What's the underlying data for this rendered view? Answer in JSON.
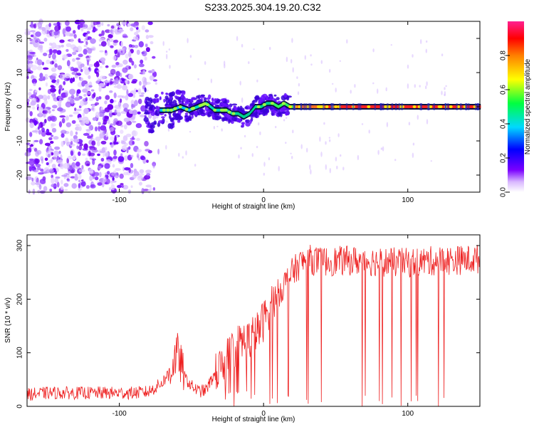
{
  "title": "S233.2025.304.19.20.C32",
  "chart_data": [
    {
      "type": "heatmap",
      "xlabel": "Height of straight line (km)",
      "ylabel": "Frequency (Hz)",
      "xlim": [
        -164,
        150
      ],
      "ylim": [
        -25,
        25
      ],
      "xticks": [
        -100,
        0,
        100
      ],
      "yticks": [
        -20,
        -10,
        0,
        10,
        20
      ],
      "tick_labels_x": [
        "-100",
        "0",
        "100"
      ],
      "tick_labels_y": [
        "-20",
        "-10",
        "0",
        "10",
        "20"
      ],
      "ridge_profile": {
        "x": [
          -80,
          -72,
          -64,
          -58,
          -52,
          -46,
          -40,
          -34,
          -30,
          -26,
          -22,
          -18,
          -14,
          -10,
          -6,
          -2,
          2,
          6,
          10,
          14,
          18,
          22,
          150
        ],
        "freq": [
          -3,
          -1,
          -1,
          0,
          -1,
          0,
          1,
          -1,
          -1,
          -1,
          -2,
          -2,
          -3,
          -2,
          0,
          0,
          1,
          1,
          0,
          1,
          0,
          0,
          0
        ]
      },
      "colorbar": {
        "label": "Normalized spectral amplitude",
        "range": [
          0,
          1
        ],
        "ticks": [
          0.0,
          0.2,
          0.4,
          0.6,
          0.8
        ],
        "tick_labels": [
          "0.0",
          "0.2",
          "0.4",
          "0.6",
          "0.8"
        ],
        "colors": [
          "#ffffff",
          "#7a00ff",
          "#0000ff",
          "#00d8ff",
          "#00ff00",
          "#ffff00",
          "#ff8000",
          "#ff0000",
          "#ff00ff"
        ]
      }
    },
    {
      "type": "line",
      "xlabel": "Height of straight line (km)",
      "ylabel": "SNR (10 * v/v)",
      "xlim": [
        -164,
        150
      ],
      "ylim": [
        0,
        320
      ],
      "xticks": [
        -100,
        0,
        100
      ],
      "yticks": [
        0,
        100,
        200,
        300
      ],
      "tick_labels_x": [
        "-100",
        "0",
        "100"
      ],
      "tick_labels_y": [
        "0",
        "100",
        "200",
        "300"
      ],
      "series": [
        {
          "name": "SNR",
          "color": "#ee2222",
          "x": [
            -164,
            -150,
            -130,
            -110,
            -90,
            -80,
            -75,
            -70,
            -65,
            -60,
            -58,
            -55,
            -52,
            -50,
            -45,
            -40,
            -35,
            -30,
            -25,
            -20,
            -15,
            -10,
            -5,
            0,
            5,
            10,
            15,
            20,
            25,
            30,
            40,
            60,
            80,
            100,
            120,
            140,
            150
          ],
          "y": [
            22,
            25,
            25,
            25,
            25,
            27,
            35,
            45,
            65,
            100,
            85,
            55,
            45,
            38,
            28,
            30,
            55,
            70,
            90,
            110,
            120,
            125,
            135,
            160,
            190,
            210,
            230,
            250,
            265,
            275,
            270,
            272,
            270,
            268,
            272,
            273,
            275
          ]
        }
      ]
    }
  ]
}
